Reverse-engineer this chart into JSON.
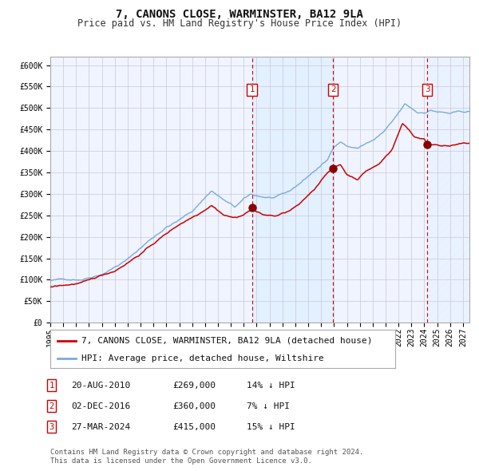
{
  "title": "7, CANONS CLOSE, WARMINSTER, BA12 9LA",
  "subtitle": "Price paid vs. HM Land Registry's House Price Index (HPI)",
  "ylim": [
    0,
    620000
  ],
  "yticks": [
    0,
    50000,
    100000,
    150000,
    200000,
    250000,
    300000,
    350000,
    400000,
    450000,
    500000,
    550000,
    600000
  ],
  "ytick_labels": [
    "£0",
    "£50K",
    "£100K",
    "£150K",
    "£200K",
    "£250K",
    "£300K",
    "£350K",
    "£400K",
    "£450K",
    "£500K",
    "£550K",
    "£600K"
  ],
  "xlim_start": 1995.0,
  "xlim_end": 2027.5,
  "xticks": [
    1995,
    1996,
    1997,
    1998,
    1999,
    2000,
    2001,
    2002,
    2003,
    2004,
    2005,
    2006,
    2007,
    2008,
    2009,
    2010,
    2011,
    2012,
    2013,
    2014,
    2015,
    2016,
    2017,
    2018,
    2019,
    2020,
    2021,
    2022,
    2023,
    2024,
    2025,
    2026,
    2027
  ],
  "background_color": "#ffffff",
  "plot_bg_color": "#f0f4ff",
  "grid_color": "#c8c8d8",
  "hpi_line_color": "#7aaadd",
  "price_line_color": "#cc0000",
  "dot_color": "#880000",
  "vline_color": "#cc0000",
  "shade_color": "#ddeeff",
  "transactions": [
    {
      "label": "1",
      "date": 2010.64,
      "price": 269000,
      "text": "20-AUG-2010",
      "amount": "£269,000",
      "pct": "14% ↓ HPI"
    },
    {
      "label": "2",
      "date": 2016.92,
      "price": 360000,
      "text": "02-DEC-2016",
      "amount": "£360,000",
      "pct": "7% ↓ HPI"
    },
    {
      "label": "3",
      "date": 2024.23,
      "price": 415000,
      "text": "27-MAR-2024",
      "amount": "£415,000",
      "pct": "15% ↓ HPI"
    }
  ],
  "legend_line1": "7, CANONS CLOSE, WARMINSTER, BA12 9LA (detached house)",
  "legend_line2": "HPI: Average price, detached house, Wiltshire",
  "legend_color1": "#cc0000",
  "legend_color2": "#7aaadd",
  "footer": "Contains HM Land Registry data © Crown copyright and database right 2024.\nThis data is licensed under the Open Government Licence v3.0.",
  "title_fontsize": 10,
  "subtitle_fontsize": 8.5,
  "tick_fontsize": 7,
  "legend_fontsize": 8,
  "table_fontsize": 8,
  "footer_fontsize": 6.5
}
